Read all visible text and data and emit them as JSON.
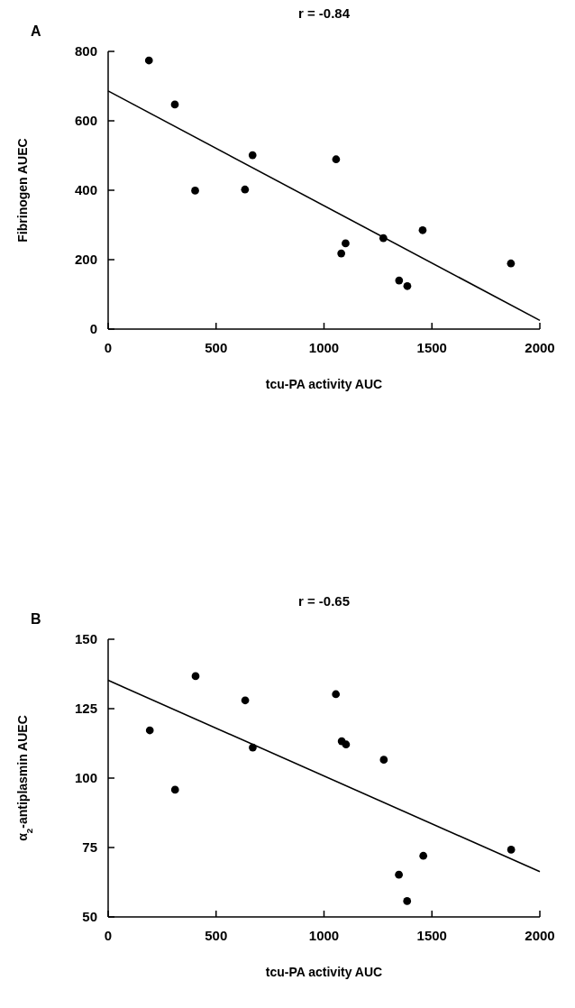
{
  "chart_data": [
    {
      "type": "scatter",
      "title": "r = -0.84",
      "annotations": [
        "A"
      ],
      "xlabel": "tcu-PA activity AUC",
      "ylabel": "Fibrinogen AUEC",
      "xlim": [
        0,
        2000
      ],
      "xticks": [
        0,
        500,
        1000,
        1500,
        2000
      ],
      "ylim": [
        0,
        800
      ],
      "yticks": [
        0,
        200,
        400,
        600,
        800
      ],
      "marker": "circle",
      "series": [
        {
          "color": "#000000",
          "x": [
            189,
            309,
            403,
            634,
            669,
            1056,
            1080,
            1100,
            1275,
            1457,
            1348,
            1386,
            1866
          ],
          "values": [
            774,
            647,
            399,
            402,
            501,
            489,
            218,
            247,
            262,
            285,
            140,
            124,
            189
          ]
        },
        {
          "type": "line",
          "color": "#000000",
          "marker": "none",
          "line_style": "solid",
          "x": [
            0,
            2000
          ],
          "values": [
            686,
            25
          ]
        }
      ]
    },
    {
      "type": "scatter",
      "title": "r = -0.65",
      "annotations": [
        "B"
      ],
      "xlabel": "tcu-PA activity AUC",
      "ylabel": "α$_{2}$-antiplasmin AUEC",
      "xlim": [
        0,
        2000
      ],
      "xticks": [
        0,
        500,
        1000,
        1500,
        2000
      ],
      "ylim": [
        50,
        150
      ],
      "yticks": [
        50,
        75,
        100,
        125,
        150
      ],
      "marker": "circle",
      "series": [
        {
          "color": "#000000",
          "x": [
            193,
            310,
            405,
            635,
            670,
            1055,
            1082,
            1102,
            1277,
            1347,
            1385,
            1460,
            1867
          ],
          "values": [
            117.2,
            95.8,
            136.7,
            128,
            111,
            130.2,
            113.3,
            112.1,
            106.6,
            65.2,
            55.7,
            72,
            74.2
          ]
        },
        {
          "type": "line",
          "color": "#000000",
          "marker": "none",
          "line_style": "solid",
          "x": [
            0,
            2000
          ],
          "values": [
            135.2,
            66.3
          ]
        }
      ]
    }
  ]
}
